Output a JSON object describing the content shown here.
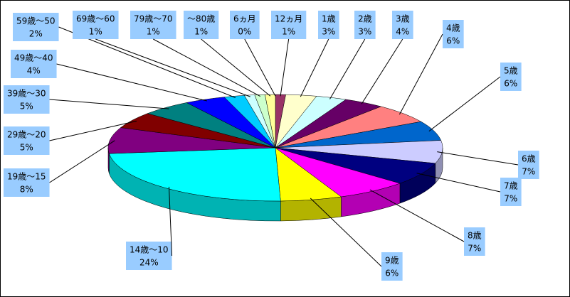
{
  "chart_data": {
    "type": "pie",
    "categories": [
      "6ヵ月",
      "12ヵ月",
      "1歳",
      "2歳",
      "3歳",
      "4歳",
      "5歳",
      "6歳",
      "7歳",
      "8歳",
      "9歳",
      "14歳～10",
      "19歳～15",
      "29歳～20",
      "39歳～30",
      "49歳～40",
      "59歳～50",
      "69歳～60",
      "79歳～70",
      "～80歳"
    ],
    "values": [
      0,
      1,
      3,
      3,
      4,
      6,
      6,
      7,
      7,
      7,
      6,
      24,
      8,
      5,
      5,
      4,
      2,
      1,
      1,
      1
    ],
    "value_labels": [
      "0%",
      "1%",
      "3%",
      "3%",
      "4%",
      "6%",
      "6%",
      "7%",
      "7%",
      "7%",
      "6%",
      "24%",
      "8%",
      "5%",
      "5%",
      "4%",
      "2%",
      "1%",
      "1%",
      "1%"
    ],
    "colors": [
      "#9999FF",
      "#993366",
      "#FFFFCC",
      "#CCFFFF",
      "#660066",
      "#FF8080",
      "#0066CC",
      "#CCCCFF",
      "#000080",
      "#FF00FF",
      "#FFFF00",
      "#00FFFF",
      "#800080",
      "#800000",
      "#008080",
      "#0000FF",
      "#00CCFF",
      "#CCFFFF",
      "#CCFFCC",
      "#FFFF99"
    ]
  }
}
